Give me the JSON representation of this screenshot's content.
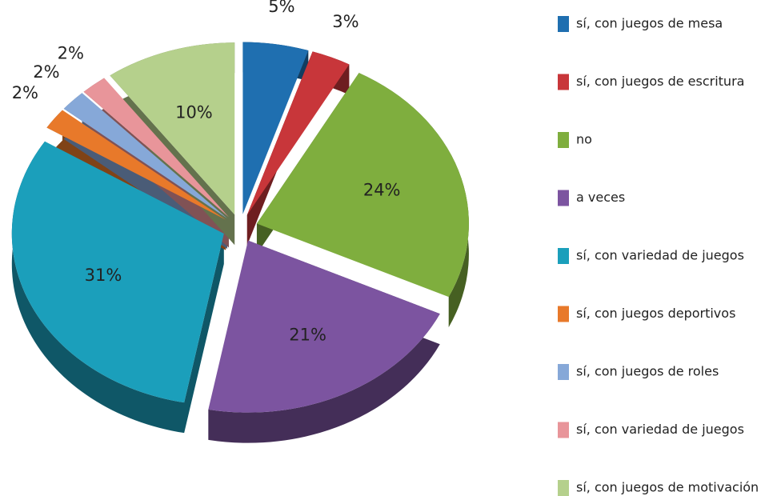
{
  "chart_data": {
    "type": "pie",
    "categories": [
      "sí, con juegos de mesa",
      "sí, con juegos de escritura",
      "no",
      "a veces",
      "sí, con variedad de juegos",
      "sí, con juegos deportivos",
      "sí, con juegos de roles",
      "sí,  con variedad de juegos",
      "sí, con juegos de motivación"
    ],
    "values": [
      5,
      3,
      24,
      21,
      31,
      2,
      2,
      2,
      10
    ],
    "value_labels": [
      "5%",
      "3%",
      "24%",
      "21%",
      "31%",
      "2%",
      "2%",
      "2%",
      "10%"
    ],
    "colors": [
      "#1f6fb0",
      "#c8363a",
      "#7fae3e",
      "#7c54a0",
      "#1b9fbb",
      "#e8792a",
      "#86a8d8",
      "#e8959a",
      "#b5d08c"
    ],
    "legend": "right"
  }
}
